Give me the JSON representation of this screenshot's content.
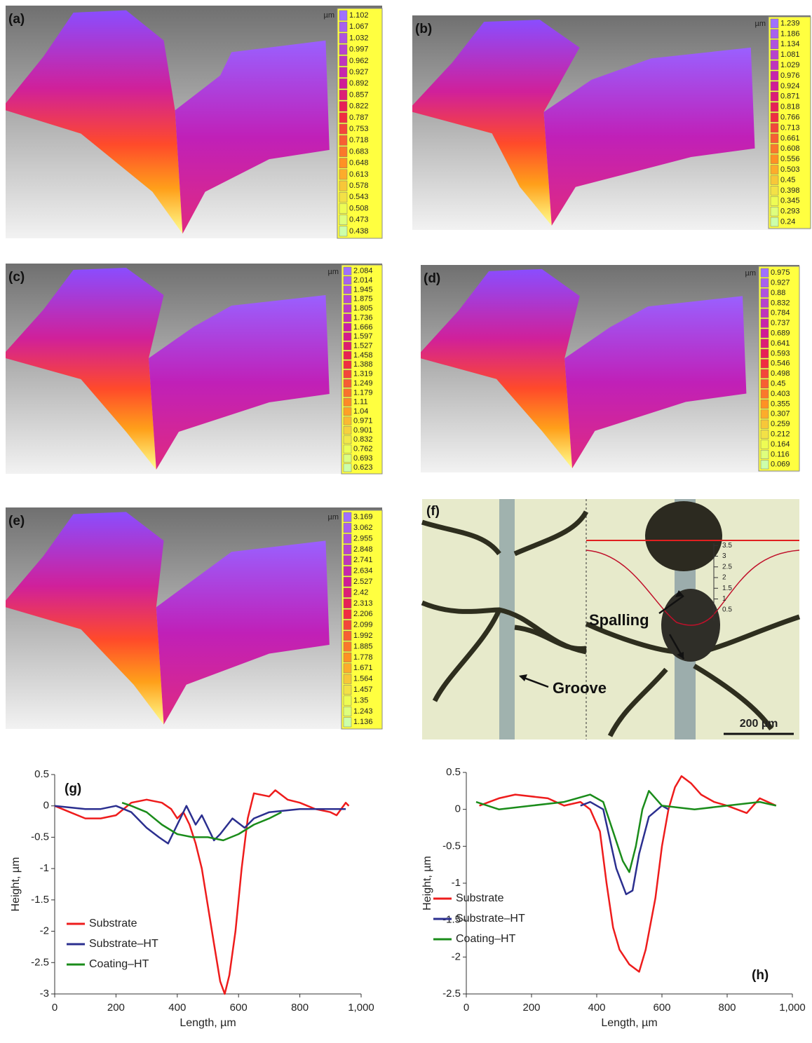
{
  "panels": [
    {
      "label": "(a)",
      "unit": "µm",
      "colorbar": [
        1.102,
        1.067,
        1.032,
        0.997,
        0.962,
        0.927,
        0.892,
        0.857,
        0.822,
        0.787,
        0.753,
        0.718,
        0.683,
        0.648,
        0.613,
        0.578,
        0.543,
        0.508,
        0.473,
        0.438
      ]
    },
    {
      "label": "(b)",
      "unit": "µm",
      "colorbar": [
        1.239,
        1.186,
        1.134,
        1.081,
        1.029,
        0.976,
        0.924,
        0.871,
        0.818,
        0.766,
        0.713,
        0.661,
        0.608,
        0.556,
        0.503,
        0.45,
        0.398,
        0.345,
        0.293,
        0.24
      ]
    },
    {
      "label": "(c)",
      "unit": "µm",
      "colorbar": [
        2.084,
        2.014,
        1.945,
        1.875,
        1.805,
        1.736,
        1.666,
        1.597,
        1.527,
        1.458,
        1.388,
        1.319,
        1.249,
        1.179,
        1.11,
        1.04,
        0.971,
        0.901,
        0.832,
        0.762,
        0.693,
        0.623
      ]
    },
    {
      "label": "(d)",
      "unit": "µm",
      "colorbar": [
        0.975,
        0.927,
        0.88,
        0.832,
        0.784,
        0.737,
        0.689,
        0.641,
        0.593,
        0.546,
        0.498,
        0.45,
        0.403,
        0.355,
        0.307,
        0.259,
        0.212,
        0.164,
        0.116,
        0.069
      ]
    },
    {
      "label": "(e)",
      "unit": "µm",
      "colorbar": [
        3.169,
        3.062,
        2.955,
        2.848,
        2.741,
        2.634,
        2.527,
        2.42,
        2.313,
        2.206,
        2.099,
        1.992,
        1.885,
        1.778,
        1.671,
        1.564,
        1.457,
        1.35,
        1.243,
        1.136
      ]
    }
  ],
  "micrograph": {
    "label": "(f)",
    "spalling": "Spalling",
    "groove": "Groove",
    "scale_bar": "200 µm",
    "inset_ticks": [
      3.5,
      3,
      2.5,
      2,
      1.5,
      1,
      0.5
    ]
  },
  "chart_data": [
    {
      "type": "line",
      "panel_label": "(g)",
      "x_label": "Length, µm",
      "y_label": "Height, µm",
      "xlim": [
        0,
        1000
      ],
      "xticks": [
        0,
        200,
        400,
        600,
        800,
        {
          "value": 1000,
          "label": "1,000"
        }
      ],
      "ylim": [
        -3,
        0.5
      ],
      "yticks": [
        0.5,
        0,
        -0.5,
        -1,
        -1.5,
        -2,
        -2.5,
        -3
      ],
      "series": [
        {
          "name": "Substrate",
          "color": "#ee1c1c",
          "x": [
            0,
            50,
            100,
            150,
            200,
            250,
            300,
            350,
            380,
            400,
            420,
            440,
            460,
            480,
            500,
            520,
            540,
            555,
            570,
            590,
            610,
            630,
            650,
            700,
            720,
            760,
            800,
            850,
            900,
            920,
            950,
            960
          ],
          "values": [
            0,
            -0.1,
            -0.2,
            -0.2,
            -0.15,
            0.05,
            0.1,
            0.05,
            -0.05,
            -0.2,
            -0.1,
            -0.3,
            -0.6,
            -1.0,
            -1.6,
            -2.2,
            -2.8,
            -3.0,
            -2.7,
            -2.0,
            -1.0,
            -0.2,
            0.2,
            0.15,
            0.25,
            0.1,
            0.05,
            -0.05,
            -0.1,
            -0.15,
            0.05,
            0
          ]
        },
        {
          "name": "Substrate–HT",
          "color": "#2b2f8f",
          "x": [
            0,
            100,
            150,
            200,
            250,
            300,
            340,
            370,
            400,
            430,
            460,
            480,
            500,
            520,
            540,
            580,
            620,
            650,
            700,
            800,
            950
          ],
          "values": [
            0,
            -0.05,
            -0.05,
            0,
            -0.1,
            -0.35,
            -0.5,
            -0.6,
            -0.3,
            0,
            -0.3,
            -0.15,
            -0.35,
            -0.55,
            -0.45,
            -0.2,
            -0.35,
            -0.2,
            -0.1,
            -0.05,
            -0.05
          ]
        },
        {
          "name": "Coating–HT",
          "color": "#1a8c1a",
          "x": [
            220,
            250,
            300,
            350,
            400,
            450,
            500,
            550,
            600,
            650,
            700,
            740
          ],
          "values": [
            0.05,
            0,
            -0.1,
            -0.3,
            -0.45,
            -0.5,
            -0.5,
            -0.55,
            -0.45,
            -0.3,
            -0.2,
            -0.1
          ]
        }
      ]
    },
    {
      "type": "line",
      "panel_label": "(h)",
      "x_label": "Length, µm",
      "y_label": "Height, µm",
      "xlim": [
        0,
        1000
      ],
      "xticks": [
        0,
        200,
        400,
        600,
        800,
        {
          "value": 1000,
          "label": "1,000"
        }
      ],
      "ylim": [
        -2.5,
        0.5
      ],
      "yticks": [
        0.5,
        0,
        -0.5,
        -1,
        -1.5,
        -2,
        -2.5
      ],
      "series": [
        {
          "name": "Substrate",
          "color": "#ee1c1c",
          "x": [
            40,
            100,
            150,
            250,
            300,
            350,
            380,
            410,
            430,
            450,
            470,
            500,
            530,
            550,
            580,
            600,
            620,
            640,
            660,
            690,
            720,
            760,
            800,
            860,
            900,
            950
          ],
          "values": [
            0.05,
            0.15,
            0.2,
            0.15,
            0.05,
            0.1,
            0,
            -0.3,
            -1.0,
            -1.6,
            -1.9,
            -2.1,
            -2.2,
            -1.9,
            -1.2,
            -0.5,
            0,
            0.3,
            0.45,
            0.35,
            0.2,
            0.1,
            0.05,
            -0.05,
            0.15,
            0.05
          ]
        },
        {
          "name": "Substrate–HT",
          "color": "#2b2f8f",
          "x": [
            350,
            380,
            420,
            440,
            460,
            490,
            510,
            530,
            560,
            600,
            620
          ],
          "values": [
            0.05,
            0.1,
            0,
            -0.4,
            -0.8,
            -1.15,
            -1.1,
            -0.6,
            -0.1,
            0.05,
            0
          ]
        },
        {
          "name": "Coating–HT",
          "color": "#1a8c1a",
          "x": [
            30,
            100,
            200,
            300,
            380,
            420,
            450,
            480,
            500,
            520,
            540,
            560,
            600,
            700,
            800,
            900,
            950
          ],
          "values": [
            0.1,
            0,
            0.05,
            0.1,
            0.2,
            0.1,
            -0.3,
            -0.7,
            -0.85,
            -0.5,
            0,
            0.25,
            0.05,
            0,
            0.05,
            0.1,
            0.05
          ]
        }
      ]
    }
  ]
}
